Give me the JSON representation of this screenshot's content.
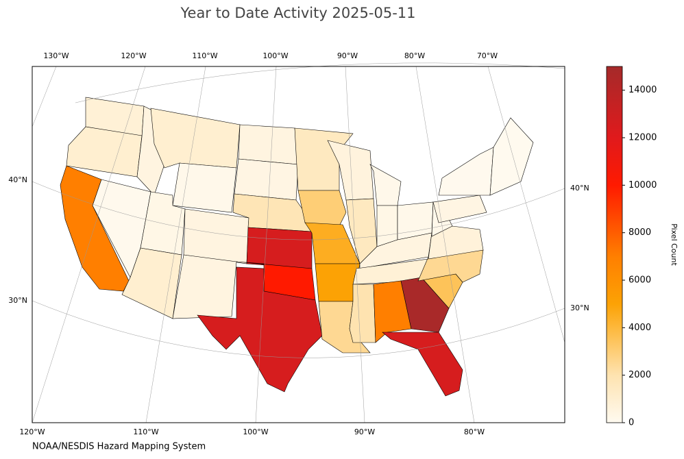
{
  "chart_data": {
    "type": "choropleth",
    "title": "Year to Date Activity 2025-05-11",
    "source": "NOAA/NESDIS Hazard Mapping System",
    "colorbar_label": "Pixel Count",
    "colorbar_lim": [
      0,
      15000
    ],
    "colorbar_ticks": [
      0,
      2000,
      4000,
      6000,
      8000,
      10000,
      12000,
      14000
    ],
    "colorscale": [
      [
        0,
        "#fffaf0"
      ],
      [
        2000,
        "#fee3b0"
      ],
      [
        4000,
        "#fdb83c"
      ],
      [
        5000,
        "#fca205"
      ],
      [
        7000,
        "#ff7f00"
      ],
      [
        10000,
        "#ff1a00"
      ],
      [
        12000,
        "#e01a1c"
      ],
      [
        15000,
        "#a52a2a"
      ]
    ],
    "top_labels": [
      "130°W",
      "120°W",
      "110°W",
      "100°W",
      "90°W",
      "80°W",
      "70°W"
    ],
    "bottom_labels": [
      "120°W",
      "110°W",
      "100°W",
      "90°W",
      "80°W"
    ],
    "left_labels": [
      "40°N",
      "30°N"
    ],
    "right_labels": [
      "40°N",
      "30°N"
    ],
    "values": [
      800,
      1000,
      7000,
      100,
      500,
      1000,
      200,
      300,
      1000,
      500,
      500,
      500,
      400,
      1800,
      12500,
      10000,
      12500,
      1500,
      3000,
      4500,
      5000,
      2500,
      600,
      1500,
      200,
      300,
      200,
      500,
      800,
      2000,
      7000,
      14800,
      12500,
      3500,
      2500,
      700,
      200,
      400,
      50,
      30
    ]
  }
}
